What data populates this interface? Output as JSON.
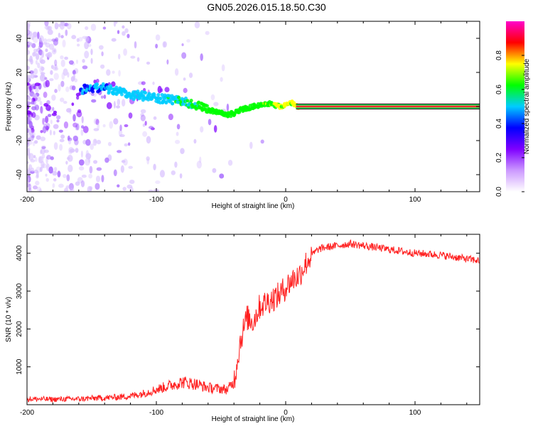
{
  "title": "GN05.2026.015.18.50.C30",
  "chart_data": [
    {
      "type": "heatmap",
      "xlabel": "Height of straight line (km)",
      "ylabel": "Frequency (Hz)",
      "xlim": [
        -200,
        150
      ],
      "ylim": [
        -50,
        50
      ],
      "x_ticks": [
        -200,
        -100,
        0,
        100
      ],
      "y_ticks": [
        -40,
        -20,
        0,
        20,
        40
      ],
      "colorbar": {
        "label": "Normalized spectral amplitude",
        "range": [
          0,
          1
        ],
        "ticks": [
          0.0,
          0.2,
          0.4,
          0.6,
          0.8
        ],
        "colors": [
          "#ffffff",
          "#cc99ff",
          "#7f00ff",
          "#0000ff",
          "#00ccff",
          "#00ff00",
          "#ffff00",
          "#ff0000",
          "#ff00cc"
        ]
      },
      "ridge": {
        "x": [
          -158,
          -150,
          -140,
          -130,
          -120,
          -110,
          -100,
          -90,
          -80,
          -70,
          -60,
          -50,
          -45,
          -40,
          -35,
          -30,
          -25,
          -20,
          -15,
          -10,
          -5,
          0,
          5,
          10,
          150
        ],
        "y": [
          10,
          11,
          11,
          9,
          7,
          6,
          5,
          4,
          3,
          1,
          -2,
          -4,
          -5,
          -4,
          -2,
          -1,
          0,
          1,
          2,
          1,
          0,
          1,
          2,
          0,
          0
        ]
      }
    },
    {
      "type": "line",
      "xlabel": "Height of straight line (km)",
      "ylabel": "SNR (10 * v/v)",
      "xlim": [
        -200,
        150
      ],
      "ylim": [
        0,
        4500
      ],
      "x_ticks": [
        -200,
        -100,
        0,
        100
      ],
      "y_ticks": [
        1000,
        2000,
        3000,
        4000
      ],
      "color": "#ff2020",
      "x": [
        -200,
        -190,
        -180,
        -170,
        -160,
        -150,
        -140,
        -130,
        -120,
        -110,
        -100,
        -90,
        -80,
        -70,
        -60,
        -50,
        -45,
        -40,
        -35,
        -30,
        -25,
        -20,
        -15,
        -10,
        -5,
        0,
        5,
        10,
        15,
        20,
        25,
        30,
        40,
        50,
        60,
        70,
        80,
        90,
        100,
        110,
        120,
        130,
        140,
        150
      ],
      "y": [
        150,
        150,
        140,
        150,
        150,
        170,
        180,
        200,
        230,
        300,
        400,
        500,
        600,
        550,
        450,
        420,
        400,
        600,
        1700,
        2300,
        2200,
        2600,
        2700,
        2800,
        2900,
        3100,
        3300,
        3400,
        3700,
        3950,
        4100,
        4150,
        4200,
        4250,
        4200,
        4150,
        4100,
        4050,
        4000,
        3980,
        3950,
        3900,
        3850,
        3800
      ]
    }
  ]
}
